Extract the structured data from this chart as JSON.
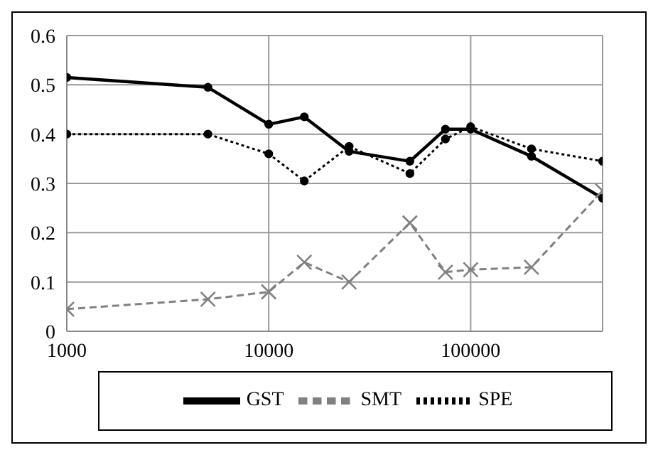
{
  "chart_data": {
    "type": "line",
    "log": "x",
    "x": [
      1000,
      5000,
      10000,
      15000,
      25000,
      50000,
      75000,
      100000,
      200000,
      450000
    ],
    "xlim": [
      1000,
      450000
    ],
    "xticks": [
      1000,
      10000,
      100000
    ],
    "ylim": [
      0,
      0.6
    ],
    "yticks": [
      0,
      0.1,
      0.2,
      0.3,
      0.4,
      0.5,
      0.6
    ],
    "grid": true,
    "legend": "bottom",
    "series": [
      {
        "name": "GST",
        "color": "#000000",
        "marker": "circle",
        "line_style": "solid",
        "values": [
          0.515,
          0.495,
          0.42,
          0.435,
          0.365,
          0.345,
          0.41,
          0.41,
          0.355,
          0.27
        ]
      },
      {
        "name": "SMT",
        "color": "#808080",
        "marker": "cross",
        "line_style": "dashed",
        "values": [
          0.045,
          0.065,
          0.08,
          0.14,
          0.1,
          0.22,
          0.12,
          0.125,
          0.13,
          0.285
        ]
      },
      {
        "name": "SPE",
        "color": "#000000",
        "marker": "circle",
        "line_style": "dotted",
        "values": [
          0.4,
          0.4,
          0.36,
          0.305,
          0.375,
          0.32,
          0.39,
          0.415,
          0.37,
          0.345
        ]
      }
    ]
  }
}
